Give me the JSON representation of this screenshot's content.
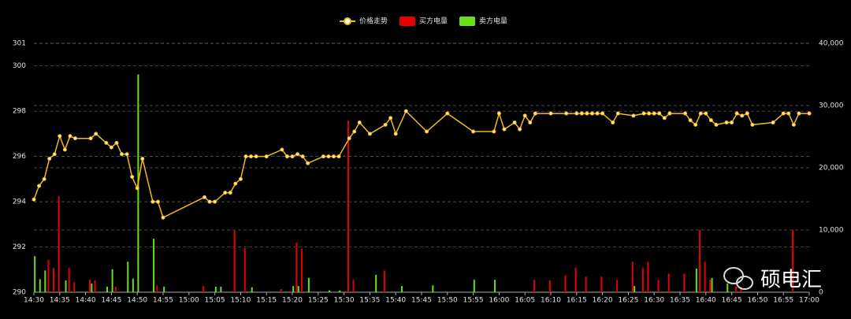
{
  "chart_data": {
    "type": "combo",
    "legend_position": "top",
    "grid": true,
    "watermark": "硕电汇",
    "xlim": [
      "14:30",
      "17:00"
    ],
    "xticks": [
      "14:30",
      "14:35",
      "14:40",
      "14:45",
      "14:50",
      "14:55",
      "15:00",
      "15:05",
      "15:10",
      "15:15",
      "15:20",
      "15:25",
      "15:30",
      "15:35",
      "15:40",
      "15:45",
      "15:50",
      "15:55",
      "16:00",
      "16:05",
      "16:10",
      "16:15",
      "16:20",
      "16:25",
      "16:30",
      "16:35",
      "16:40",
      "16:45",
      "16:50",
      "16:55",
      "17:00"
    ],
    "ylim": [
      290,
      301
    ],
    "yticks": [
      290,
      292,
      294,
      296,
      298,
      300,
      301
    ],
    "y2lim": [
      0,
      40000
    ],
    "y2ticks": [
      0,
      {
        "value": 10000,
        "label": "10,000"
      },
      {
        "value": 20000,
        "label": "20,000"
      },
      {
        "value": 30000,
        "label": "30,000"
      },
      {
        "value": 40000,
        "label": "40,000"
      }
    ],
    "series": [
      {
        "name": "价格走势",
        "type": "line",
        "color": "#f2b91c",
        "x": [
          "14:30",
          "14:31",
          "14:32",
          "14:33",
          "14:34",
          "14:35",
          "14:36",
          "14:37",
          "14:38",
          "14:41",
          "14:42",
          "14:44",
          "14:45",
          "14:46",
          "14:47",
          "14:48",
          "14:49",
          "14:50",
          "14:51",
          "14:53",
          "14:54",
          "14:55",
          "15:03",
          "15:04",
          "15:05",
          "15:07",
          "15:08",
          "15:09",
          "15:10",
          "15:11",
          "15:12",
          "15:13",
          "15:15",
          "15:18",
          "15:19",
          "15:20",
          "15:21",
          "15:22",
          "15:23",
          "15:26",
          "15:27",
          "15:28",
          "15:29",
          "15:31",
          "15:32",
          "15:33",
          "15:35",
          "15:38",
          "15:39",
          "15:40",
          "15:42",
          "15:46",
          "15:50",
          "15:55",
          "15:59",
          "16:00",
          "16:01",
          "16:03",
          "16:04",
          "16:05",
          "16:06",
          "16:07",
          "16:10",
          "16:13",
          "16:15",
          "16:16",
          "16:17",
          "16:18",
          "16:19",
          "16:20",
          "16:22",
          "16:23",
          "16:26",
          "16:28",
          "16:29",
          "16:30",
          "16:31",
          "16:32",
          "16:33",
          "16:36",
          "16:37",
          "16:38",
          "16:39",
          "16:40",
          "16:41",
          "16:42",
          "16:44",
          "16:45",
          "16:46",
          "16:47",
          "16:48",
          "16:49",
          "16:53",
          "16:55",
          "16:56",
          "16:57",
          "16:58",
          "17:00"
        ],
        "values": [
          294.1,
          294.7,
          295.0,
          295.9,
          296.1,
          296.9,
          296.3,
          296.9,
          296.8,
          296.8,
          297.0,
          296.6,
          296.4,
          296.6,
          296.1,
          296.1,
          295.1,
          294.6,
          295.9,
          294.0,
          294.0,
          293.3,
          294.2,
          294.0,
          294.0,
          294.4,
          294.4,
          294.8,
          295.0,
          296.0,
          296.0,
          296.0,
          296.0,
          296.3,
          296.0,
          296.0,
          296.1,
          296.0,
          295.7,
          296.0,
          296.0,
          296.0,
          296.0,
          296.8,
          297.1,
          297.5,
          297.0,
          297.4,
          297.7,
          297.0,
          298.0,
          297.1,
          297.9,
          297.1,
          297.1,
          297.9,
          297.2,
          297.5,
          297.2,
          297.8,
          297.5,
          297.9,
          297.9,
          297.9,
          297.9,
          297.9,
          297.9,
          297.9,
          297.9,
          297.9,
          297.5,
          297.9,
          297.8,
          297.9,
          297.9,
          297.9,
          297.9,
          297.7,
          297.9,
          297.9,
          297.6,
          297.4,
          297.9,
          297.9,
          297.6,
          297.4,
          297.5,
          297.5,
          297.9,
          297.8,
          297.9,
          297.4,
          297.5,
          297.9,
          297.9,
          297.4,
          297.9,
          297.9
        ]
      },
      {
        "name": "买方电量",
        "type": "bar",
        "axis": "y2",
        "color": "#e60000",
        "x": [
          "14:33",
          "14:34",
          "14:35",
          "14:37",
          "14:38",
          "14:41",
          "14:42",
          "14:46",
          "14:54",
          "15:03",
          "15:09",
          "15:11",
          "15:18",
          "15:21",
          "15:22",
          "15:31",
          "15:32",
          "15:38",
          "16:07",
          "16:10",
          "16:13",
          "16:15",
          "16:17",
          "16:20",
          "16:23",
          "16:26",
          "16:28",
          "16:29",
          "16:31",
          "16:33",
          "16:36",
          "16:39",
          "16:40",
          "16:41",
          "16:46",
          "16:47",
          "16:57"
        ],
        "values": [
          5200,
          3900,
          15400,
          3900,
          1600,
          2000,
          1900,
          900,
          1100,
          1000,
          9900,
          7100,
          500,
          8000,
          7000,
          27600,
          2000,
          3500,
          2000,
          1900,
          2700,
          3900,
          2500,
          2500,
          2000,
          4900,
          3900,
          4900,
          2000,
          3000,
          3000,
          10000,
          4900,
          2000,
          900,
          900,
          10000
        ]
      },
      {
        "name": "卖方电量",
        "type": "bar",
        "axis": "y2",
        "color": "#66e01a",
        "x": [
          "14:30",
          "14:31",
          "14:32",
          "14:36",
          "14:41",
          "14:44",
          "14:45",
          "14:48",
          "14:49",
          "14:50",
          "14:53",
          "14:55",
          "15:05",
          "15:06",
          "15:12",
          "15:20",
          "15:21",
          "15:23",
          "15:27",
          "15:29",
          "15:36",
          "15:41",
          "15:47",
          "15:55",
          "15:59",
          "16:26",
          "16:38",
          "16:41",
          "16:44"
        ],
        "values": [
          5800,
          2100,
          3500,
          1900,
          1400,
          900,
          3700,
          4900,
          2200,
          35000,
          8600,
          900,
          900,
          900,
          800,
          1000,
          1000,
          2300,
          300,
          300,
          2800,
          1000,
          1100,
          2000,
          2000,
          1000,
          3800,
          2300,
          1400
        ]
      }
    ]
  }
}
